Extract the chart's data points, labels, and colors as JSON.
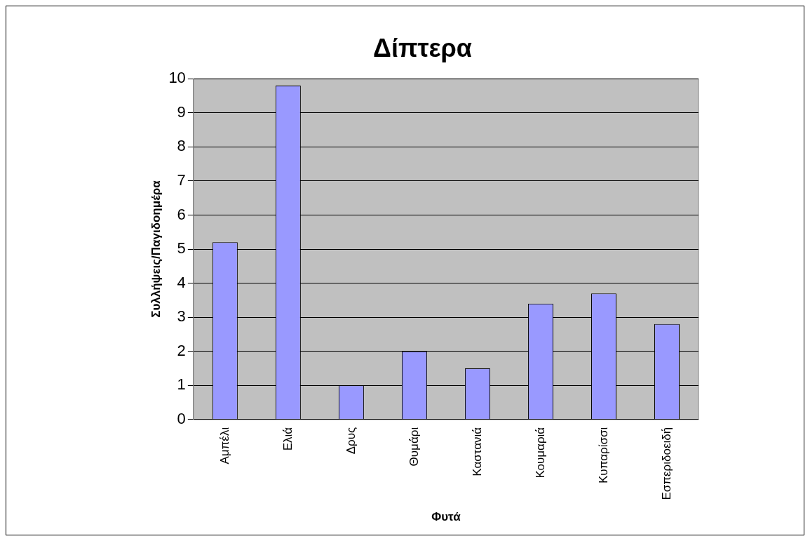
{
  "chart_data": {
    "type": "bar",
    "title": "Δίπτερα",
    "xlabel": "Φυτά",
    "ylabel": "Συλλήψεις/Παγιδοημέρα",
    "categories": [
      "Αμπέλι",
      "Ελιά",
      "Δρυς",
      "Θυμάρι",
      "Καστανιά",
      "Κουμαριά",
      "Κυπαρίσσι",
      "Εσπεριδοειδή"
    ],
    "values": [
      5.2,
      9.8,
      1,
      2,
      1.5,
      3.4,
      3.7,
      2.8
    ],
    "color": "#9999ff",
    "ylim": [
      0,
      10
    ],
    "yticks": [
      0,
      1,
      2,
      3,
      4,
      5,
      6,
      7,
      8,
      9,
      10
    ],
    "grid": "y",
    "legend": false
  }
}
